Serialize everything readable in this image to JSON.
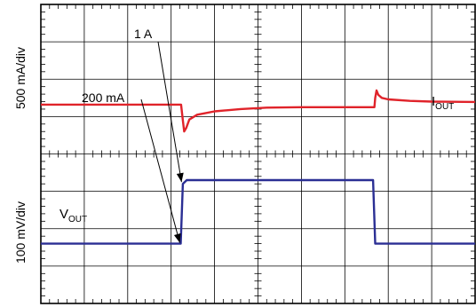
{
  "chart_data": {
    "type": "line",
    "divisions": {
      "x": 10,
      "y": 8
    },
    "grid": true,
    "ylabel_top": "500 mA/div",
    "ylabel_bottom": "100 mV/div",
    "series": [
      {
        "name": "IOUT",
        "label_main": "I",
        "label_sub": "OUT",
        "color": "#2b2f94",
        "units": "div",
        "x": [
          0,
          3.22,
          3.27,
          3.36,
          7.65,
          7.7,
          10
        ],
        "y": [
          1.6,
          1.6,
          3.2,
          3.3,
          3.3,
          1.6,
          1.6
        ]
      },
      {
        "name": "VOUT",
        "label_main": "V",
        "label_sub": "OUT",
        "color": "#e0232a",
        "units": "div",
        "x": [
          0,
          3.23,
          3.27,
          3.3,
          3.35,
          3.42,
          3.6,
          4.0,
          4.6,
          5.2,
          6.0,
          7.0,
          7.68,
          7.7,
          7.73,
          7.77,
          7.85,
          8.0,
          8.5,
          9.0,
          10
        ],
        "y": [
          5.32,
          5.32,
          4.9,
          4.6,
          4.7,
          4.92,
          5.05,
          5.14,
          5.2,
          5.24,
          5.25,
          5.25,
          5.25,
          5.5,
          5.7,
          5.58,
          5.5,
          5.46,
          5.42,
          5.4,
          5.39
        ]
      }
    ],
    "annotations": [
      {
        "text": "1 A",
        "target_y": 3.2
      },
      {
        "text": "200 mA",
        "target_y": 1.6
      }
    ]
  }
}
